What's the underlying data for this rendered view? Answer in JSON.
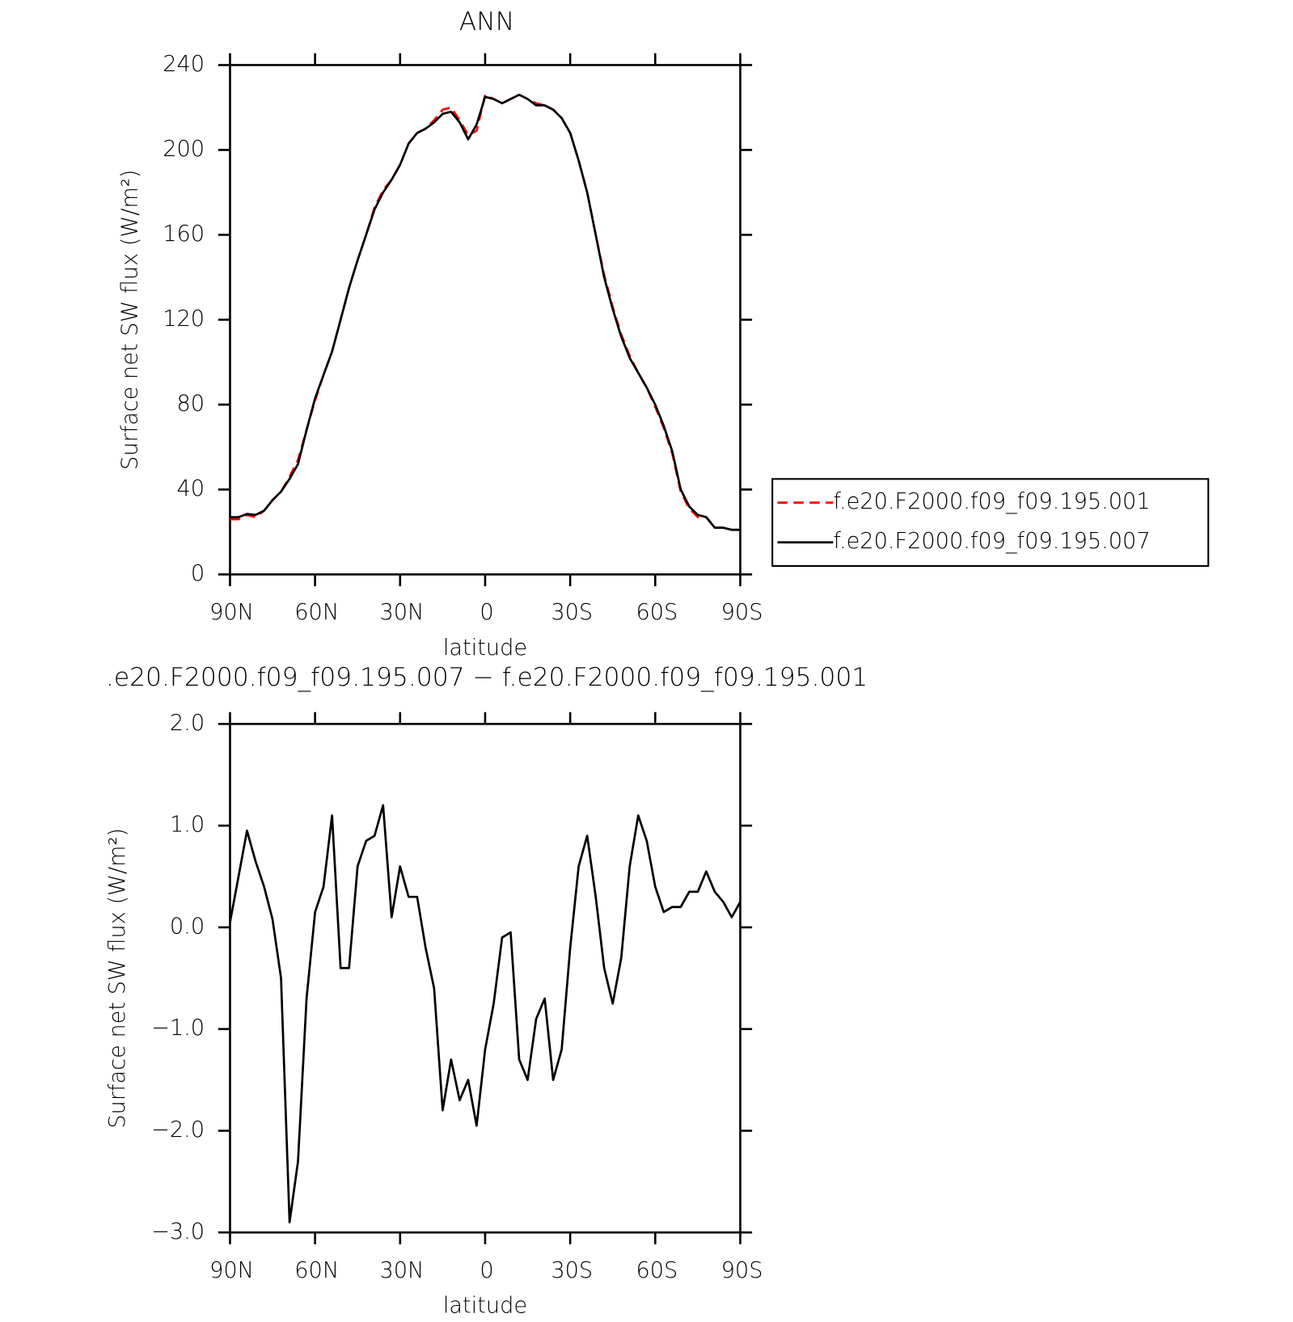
{
  "chart_data": [
    {
      "type": "line",
      "title": "ANN",
      "xlabel": "latitude",
      "ylabel": "Surface net SW flux (W/m²)",
      "x": [
        90,
        87,
        84,
        81,
        78,
        75,
        72,
        69,
        66,
        63,
        60,
        57,
        54,
        51,
        48,
        45,
        42,
        39,
        36,
        33,
        30,
        27,
        24,
        21,
        18,
        15,
        12,
        9,
        6,
        3,
        0,
        -3,
        -6,
        -9,
        -12,
        -15,
        -18,
        -21,
        -24,
        -27,
        -30,
        -33,
        -36,
        -39,
        -42,
        -45,
        -48,
        -51,
        -54,
        -57,
        -60,
        -63,
        -66,
        -69,
        -72,
        -75,
        -78,
        -81,
        -84,
        -87,
        -90
      ],
      "xlim": [
        90,
        -90
      ],
      "xticks": [
        {
          "value": 90,
          "label": "90N"
        },
        {
          "value": 60,
          "label": "60N"
        },
        {
          "value": 30,
          "label": "30N"
        },
        0,
        {
          "value": -30,
          "label": "30S"
        },
        {
          "value": -60,
          "label": "60S"
        },
        {
          "value": -90,
          "label": "90S"
        }
      ],
      "ylim": [
        0,
        240
      ],
      "yticks": [
        0,
        40,
        80,
        120,
        160,
        200,
        240
      ],
      "legend": "right",
      "series": [
        {
          "name": "f.e20.F2000.f09_f09.195.001",
          "color": "#ff0000",
          "dash": "dashed",
          "values": [
            26,
            26,
            28,
            27,
            30,
            35,
            39,
            46,
            54,
            68,
            82,
            94,
            105,
            120,
            135,
            148,
            160,
            173,
            181,
            186,
            193,
            203,
            208,
            210,
            214,
            219,
            220,
            214,
            207,
            209,
            226,
            224,
            222,
            224,
            226,
            224,
            222,
            221,
            219,
            215,
            208,
            195,
            180,
            160,
            141,
            126,
            113,
            103,
            95,
            88,
            79,
            69,
            57,
            39,
            31,
            27,
            27,
            22,
            22,
            21,
            21
          ]
        },
        {
          "name": "f.e20.F2000.f09_f09.195.007",
          "color": "#000000",
          "dash": "solid",
          "values": [
            27,
            27,
            28.5,
            28,
            30,
            35,
            39,
            45,
            52,
            68,
            83,
            94,
            105,
            120,
            135,
            148,
            160,
            172,
            180,
            186,
            193,
            203,
            208,
            210,
            213,
            217,
            218,
            213,
            205,
            212,
            225,
            224,
            222,
            224,
            226,
            224,
            221,
            221,
            219,
            215,
            208,
            195,
            180,
            160,
            140,
            125,
            112,
            102,
            95,
            88,
            80,
            70,
            58,
            40,
            32,
            28,
            27,
            22,
            22,
            21,
            21
          ]
        }
      ]
    },
    {
      "type": "line",
      "title": ".e20.F2000.f09_f09.195.007 − f.e20.F2000.f09_f09.195.001",
      "xlabel": "latitude",
      "ylabel": "Surface net SW flux (W/m²)",
      "x": [
        90,
        87,
        84,
        81,
        78,
        75,
        72,
        69,
        66,
        63,
        60,
        57,
        54,
        51,
        48,
        45,
        42,
        39,
        36,
        33,
        30,
        27,
        24,
        21,
        18,
        15,
        12,
        9,
        6,
        3,
        0,
        -3,
        -6,
        -9,
        -12,
        -15,
        -18,
        -21,
        -24,
        -27,
        -30,
        -33,
        -36,
        -39,
        -42,
        -45,
        -48,
        -51,
        -54,
        -57,
        -60,
        -63,
        -66,
        -69,
        -72,
        -75,
        -78,
        -81,
        -84,
        -87,
        -90
      ],
      "xlim": [
        90,
        -90
      ],
      "xticks": [
        {
          "value": 90,
          "label": "90N"
        },
        {
          "value": 60,
          "label": "60N"
        },
        {
          "value": 30,
          "label": "30N"
        },
        0,
        {
          "value": -30,
          "label": "30S"
        },
        {
          "value": -60,
          "label": "60S"
        },
        {
          "value": -90,
          "label": "90S"
        }
      ],
      "ylim": [
        -3,
        2
      ],
      "yticks": [
        {
          "value": -3,
          "label": "−3.0"
        },
        {
          "value": -2,
          "label": "−2.0"
        },
        {
          "value": -1,
          "label": "−1.0"
        },
        {
          "value": 0,
          "label": "0.0"
        },
        {
          "value": 1,
          "label": "1.0"
        },
        {
          "value": 2,
          "label": "2.0"
        }
      ],
      "series": [
        {
          "color": "#000000",
          "dash": "solid",
          "values": [
            0.05,
            0.5,
            0.95,
            0.65,
            0.4,
            0.08,
            -0.5,
            -2.9,
            -2.3,
            -0.7,
            0.15,
            0.4,
            1.1,
            -0.4,
            -0.4,
            0.6,
            0.85,
            0.9,
            1.2,
            0.1,
            0.6,
            0.3,
            0.3,
            -0.2,
            -0.6,
            -1.8,
            -1.3,
            -1.7,
            -1.5,
            -1.95,
            -1.2,
            -0.75,
            -0.1,
            -0.05,
            -1.3,
            -1.5,
            -0.9,
            -0.7,
            -1.5,
            -1.2,
            -0.2,
            0.6,
            0.9,
            0.3,
            -0.4,
            -0.75,
            -0.3,
            0.6,
            1.1,
            0.85,
            0.4,
            0.15,
            0.2,
            0.2,
            0.35,
            0.35,
            0.55,
            0.35,
            0.25,
            0.1,
            0.25
          ]
        }
      ]
    }
  ]
}
